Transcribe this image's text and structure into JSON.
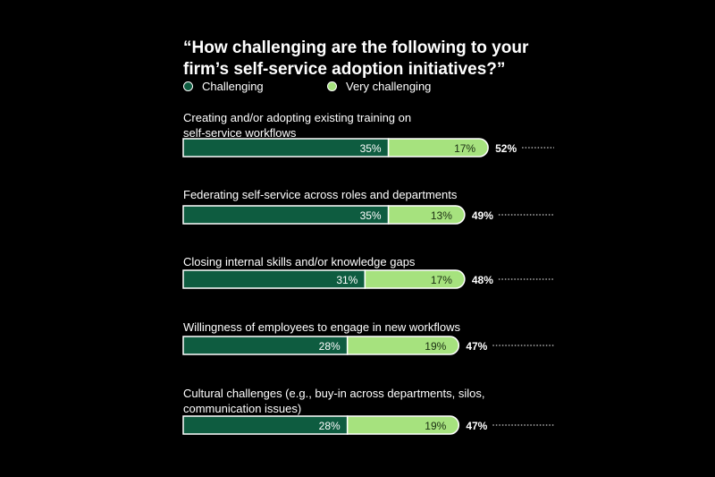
{
  "chart_data": {
    "type": "bar",
    "orientation": "horizontal",
    "stacked": true,
    "title": "“How challenging are the following to your firm’s self-service adoption initiatives?”",
    "xlim": [
      0,
      100
    ],
    "legend_position": "top-left",
    "colors": {
      "challenging": "#0e5c40",
      "very_challenging": "#a6e27e",
      "background": "#000000"
    },
    "legend": [
      "Challenging",
      "Very challenging"
    ],
    "categories": [
      "Creating and/or adopting existing training on self-service workflows",
      "Federating self-service across roles and departments",
      "Closing internal skills and/or knowledge gaps",
      "Willingness of employees to engage in new workflows",
      "Cultural challenges (e.g., buy-in across departments, silos, communication issues)"
    ],
    "series": [
      {
        "name": "Challenging",
        "values": [
          35,
          35,
          31,
          28,
          28
        ],
        "labels": [
          "35%",
          "35%",
          "31%",
          "28%",
          "28%"
        ]
      },
      {
        "name": "Very challenging",
        "values": [
          17,
          13,
          17,
          19,
          19
        ],
        "labels": [
          "17%",
          "13%",
          "17%",
          "19%",
          "19%"
        ]
      }
    ],
    "totals": [
      52,
      49,
      48,
      47,
      47
    ],
    "total_labels": [
      "52%",
      "49%",
      "48%",
      "47%",
      "47%"
    ]
  }
}
